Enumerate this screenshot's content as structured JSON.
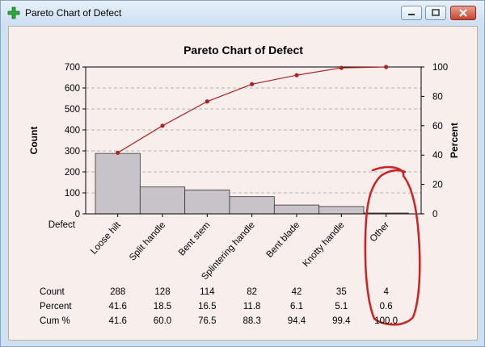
{
  "window": {
    "title": "Pareto Chart of Defect",
    "icon": "green-plus-icon",
    "buttons": [
      "minimize-icon",
      "maximize-icon",
      "close-icon"
    ]
  },
  "chart_data": {
    "type": "bar",
    "title": "Pareto Chart of Defect",
    "xlabel": "Defect",
    "ylabel": "Count",
    "y2label": "Percent",
    "categories": [
      "Loose hilt",
      "Split handle",
      "Bent stem",
      "Splintering handle",
      "Bent blade",
      "Knotty handle",
      "Other"
    ],
    "values": [
      288,
      128,
      114,
      82,
      42,
      35,
      4
    ],
    "cumulative_percent": [
      41.6,
      60.0,
      76.5,
      88.3,
      94.4,
      99.4,
      100.0
    ],
    "ylim": [
      0,
      700
    ],
    "yticks": [
      "0",
      "100",
      "200",
      "300",
      "400",
      "500",
      "600",
      "700"
    ],
    "y2lim": [
      0,
      100
    ],
    "y2ticks": [
      "0",
      "20",
      "40",
      "60",
      "80",
      "100"
    ],
    "grid": true,
    "bar_color": "#c8c3c8",
    "line_color": "#b02020"
  },
  "table": {
    "row_labels": [
      "Count",
      "Percent",
      "Cum %"
    ],
    "rows": [
      [
        "288",
        "128",
        "114",
        "82",
        "42",
        "35",
        "4"
      ],
      [
        "41.6",
        "18.5",
        "16.5",
        "11.8",
        "6.1",
        "5.1",
        "0.6"
      ],
      [
        "41.6",
        "60.0",
        "76.5",
        "88.3",
        "94.4",
        "99.4",
        "100.0"
      ]
    ]
  },
  "annotation": {
    "description": "red freehand circle around Other column",
    "color": "#d02020"
  }
}
